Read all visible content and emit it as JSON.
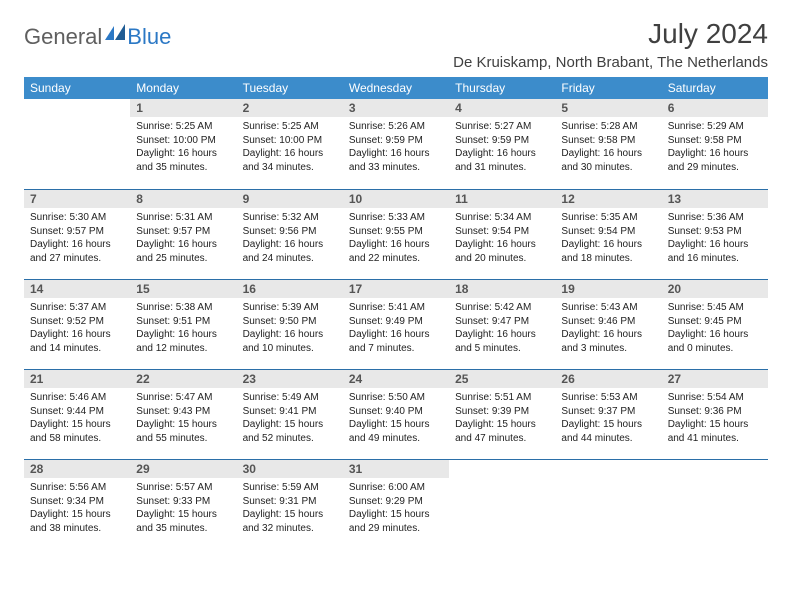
{
  "logo": {
    "text_gray": "General",
    "text_blue": "Blue",
    "mark_color": "#2b78c5"
  },
  "title": "July 2024",
  "location": "De Kruiskamp, North Brabant, The Netherlands",
  "colors": {
    "header_bg": "#3c8ccb",
    "header_text": "#ffffff",
    "daynum_bg": "#e8e8e8",
    "daynum_text": "#555555",
    "row_divider": "#2b6fa8",
    "body_text": "#222222",
    "title_text": "#404040",
    "logo_gray": "#5f5f5f",
    "logo_blue": "#2b78c5"
  },
  "weekdays": [
    "Sunday",
    "Monday",
    "Tuesday",
    "Wednesday",
    "Thursday",
    "Friday",
    "Saturday"
  ],
  "weeks": [
    [
      null,
      {
        "n": "1",
        "sunrise": "5:25 AM",
        "sunset": "10:00 PM",
        "daylight": "16 hours and 35 minutes."
      },
      {
        "n": "2",
        "sunrise": "5:25 AM",
        "sunset": "10:00 PM",
        "daylight": "16 hours and 34 minutes."
      },
      {
        "n": "3",
        "sunrise": "5:26 AM",
        "sunset": "9:59 PM",
        "daylight": "16 hours and 33 minutes."
      },
      {
        "n": "4",
        "sunrise": "5:27 AM",
        "sunset": "9:59 PM",
        "daylight": "16 hours and 31 minutes."
      },
      {
        "n": "5",
        "sunrise": "5:28 AM",
        "sunset": "9:58 PM",
        "daylight": "16 hours and 30 minutes."
      },
      {
        "n": "6",
        "sunrise": "5:29 AM",
        "sunset": "9:58 PM",
        "daylight": "16 hours and 29 minutes."
      }
    ],
    [
      {
        "n": "7",
        "sunrise": "5:30 AM",
        "sunset": "9:57 PM",
        "daylight": "16 hours and 27 minutes."
      },
      {
        "n": "8",
        "sunrise": "5:31 AM",
        "sunset": "9:57 PM",
        "daylight": "16 hours and 25 minutes."
      },
      {
        "n": "9",
        "sunrise": "5:32 AM",
        "sunset": "9:56 PM",
        "daylight": "16 hours and 24 minutes."
      },
      {
        "n": "10",
        "sunrise": "5:33 AM",
        "sunset": "9:55 PM",
        "daylight": "16 hours and 22 minutes."
      },
      {
        "n": "11",
        "sunrise": "5:34 AM",
        "sunset": "9:54 PM",
        "daylight": "16 hours and 20 minutes."
      },
      {
        "n": "12",
        "sunrise": "5:35 AM",
        "sunset": "9:54 PM",
        "daylight": "16 hours and 18 minutes."
      },
      {
        "n": "13",
        "sunrise": "5:36 AM",
        "sunset": "9:53 PM",
        "daylight": "16 hours and 16 minutes."
      }
    ],
    [
      {
        "n": "14",
        "sunrise": "5:37 AM",
        "sunset": "9:52 PM",
        "daylight": "16 hours and 14 minutes."
      },
      {
        "n": "15",
        "sunrise": "5:38 AM",
        "sunset": "9:51 PM",
        "daylight": "16 hours and 12 minutes."
      },
      {
        "n": "16",
        "sunrise": "5:39 AM",
        "sunset": "9:50 PM",
        "daylight": "16 hours and 10 minutes."
      },
      {
        "n": "17",
        "sunrise": "5:41 AM",
        "sunset": "9:49 PM",
        "daylight": "16 hours and 7 minutes."
      },
      {
        "n": "18",
        "sunrise": "5:42 AM",
        "sunset": "9:47 PM",
        "daylight": "16 hours and 5 minutes."
      },
      {
        "n": "19",
        "sunrise": "5:43 AM",
        "sunset": "9:46 PM",
        "daylight": "16 hours and 3 minutes."
      },
      {
        "n": "20",
        "sunrise": "5:45 AM",
        "sunset": "9:45 PM",
        "daylight": "16 hours and 0 minutes."
      }
    ],
    [
      {
        "n": "21",
        "sunrise": "5:46 AM",
        "sunset": "9:44 PM",
        "daylight": "15 hours and 58 minutes."
      },
      {
        "n": "22",
        "sunrise": "5:47 AM",
        "sunset": "9:43 PM",
        "daylight": "15 hours and 55 minutes."
      },
      {
        "n": "23",
        "sunrise": "5:49 AM",
        "sunset": "9:41 PM",
        "daylight": "15 hours and 52 minutes."
      },
      {
        "n": "24",
        "sunrise": "5:50 AM",
        "sunset": "9:40 PM",
        "daylight": "15 hours and 49 minutes."
      },
      {
        "n": "25",
        "sunrise": "5:51 AM",
        "sunset": "9:39 PM",
        "daylight": "15 hours and 47 minutes."
      },
      {
        "n": "26",
        "sunrise": "5:53 AM",
        "sunset": "9:37 PM",
        "daylight": "15 hours and 44 minutes."
      },
      {
        "n": "27",
        "sunrise": "5:54 AM",
        "sunset": "9:36 PM",
        "daylight": "15 hours and 41 minutes."
      }
    ],
    [
      {
        "n": "28",
        "sunrise": "5:56 AM",
        "sunset": "9:34 PM",
        "daylight": "15 hours and 38 minutes."
      },
      {
        "n": "29",
        "sunrise": "5:57 AM",
        "sunset": "9:33 PM",
        "daylight": "15 hours and 35 minutes."
      },
      {
        "n": "30",
        "sunrise": "5:59 AM",
        "sunset": "9:31 PM",
        "daylight": "15 hours and 32 minutes."
      },
      {
        "n": "31",
        "sunrise": "6:00 AM",
        "sunset": "9:29 PM",
        "daylight": "15 hours and 29 minutes."
      },
      null,
      null,
      null
    ]
  ],
  "labels": {
    "sunrise": "Sunrise: ",
    "sunset": "Sunset: ",
    "daylight": "Daylight: "
  }
}
